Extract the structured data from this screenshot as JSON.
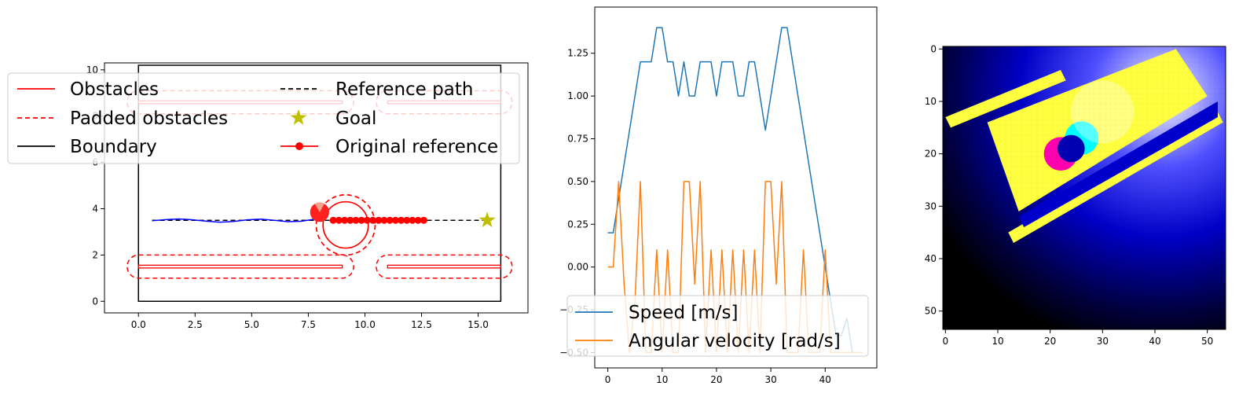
{
  "chart_data": [
    {
      "type": "line",
      "panel": "map",
      "xlim": [
        -1.5,
        17.2
      ],
      "ylim": [
        -0.5,
        10.3
      ],
      "xticks": [
        0.0,
        2.5,
        5.0,
        7.5,
        10.0,
        12.5,
        15.0
      ],
      "xtick_labels": [
        "0.0",
        "2.5",
        "5.0",
        "7.5",
        "10.0",
        "12.5",
        "15.0"
      ],
      "yticks": [
        0,
        2,
        4,
        6,
        8,
        10
      ],
      "ytick_labels": [
        "0",
        "2",
        "4",
        "6",
        "8",
        "10"
      ],
      "legend": {
        "placement": "upper-left",
        "entries": [
          {
            "name": "Obstacles",
            "color": "#ff0000",
            "style": "solid"
          },
          {
            "name": "Padded obstacles",
            "color": "#ff0000",
            "style": "dashed"
          },
          {
            "name": "Boundary",
            "color": "#000000",
            "style": "solid"
          },
          {
            "name": "Reference path",
            "color": "#000000",
            "style": "dashed"
          },
          {
            "name": "Goal",
            "color": "#bfbf00",
            "style": "star"
          },
          {
            "name": "Original reference",
            "color": "#ff0000",
            "style": "line-dot"
          }
        ]
      },
      "boundary": [
        [
          0,
          0
        ],
        [
          16,
          0
        ],
        [
          16,
          10.2
        ],
        [
          0,
          10.2
        ]
      ],
      "obstacles": [
        {
          "x0": 0,
          "x1": 9,
          "y": 1.5,
          "pad": 0.5
        },
        {
          "x0": 11,
          "x1": 16,
          "y": 1.5,
          "pad": 0.5
        },
        {
          "x0": 0,
          "x1": 9,
          "y": 8.6,
          "pad": 0.5
        },
        {
          "x0": 11,
          "x1": 16,
          "y": 8.6,
          "pad": 0.5
        }
      ],
      "reference_path": {
        "x": [
          0.6,
          15.4
        ],
        "y": [
          3.5,
          3.5
        ]
      },
      "goal": {
        "x": 15.4,
        "y": 3.5
      },
      "trajectory": {
        "x": [
          0.6,
          1.2,
          1.8,
          2.4,
          3.0,
          3.6,
          4.2,
          4.8,
          5.4,
          6.0,
          6.6,
          7.2,
          7.8,
          8.2
        ],
        "y": [
          3.48,
          3.53,
          3.56,
          3.52,
          3.46,
          3.42,
          3.45,
          3.52,
          3.55,
          3.5,
          3.44,
          3.46,
          3.55,
          3.6
        ]
      },
      "original_reference": {
        "x": [
          8.6,
          8.85,
          9.1,
          9.35,
          9.6,
          9.85,
          10.1,
          10.35,
          10.6,
          10.85,
          11.1,
          11.35,
          11.6,
          11.85,
          12.1,
          12.35,
          12.6
        ],
        "y": [
          3.5,
          3.5,
          3.5,
          3.5,
          3.5,
          3.5,
          3.5,
          3.5,
          3.5,
          3.5,
          3.5,
          3.5,
          3.5,
          3.5,
          3.5,
          3.5,
          3.5
        ]
      },
      "robot": {
        "x": 8.0,
        "y": 3.85,
        "radius": 0.42
      },
      "dynamic_obstacle": {
        "x": 9.15,
        "y": 3.3,
        "radius": 1.0,
        "padded_radius": 1.3
      }
    },
    {
      "type": "line",
      "panel": "velocities",
      "xlim": [
        -2.4,
        49.5
      ],
      "ylim": [
        -0.59,
        1.52
      ],
      "xticks": [
        0,
        10,
        20,
        30,
        40
      ],
      "xtick_labels": [
        "0",
        "10",
        "20",
        "30",
        "40"
      ],
      "yticks": [
        -0.5,
        -0.25,
        0.0,
        0.25,
        0.5,
        0.75,
        1.0,
        1.25
      ],
      "ytick_labels": [
        "−0.50",
        "−0.25",
        "0.00",
        "0.25",
        "0.50",
        "0.75",
        "1.00",
        "1.25"
      ],
      "legend": {
        "placement": "lower-left"
      },
      "series": [
        {
          "name": "Speed [m/s]",
          "color": "#1f77b4",
          "x": [
            0,
            1,
            2,
            3,
            4,
            5,
            6,
            7,
            8,
            9,
            10,
            11,
            12,
            13,
            14,
            15,
            16,
            17,
            18,
            19,
            20,
            21,
            22,
            23,
            24,
            25,
            26,
            27,
            28,
            29,
            30,
            31,
            32,
            33,
            34,
            35,
            36,
            37,
            38,
            39,
            40,
            41,
            42,
            43,
            44,
            45
          ],
          "values": [
            0.2,
            0.2,
            0.4,
            0.6,
            0.8,
            1.0,
            1.2,
            1.2,
            1.2,
            1.4,
            1.4,
            1.2,
            1.2,
            1.0,
            1.2,
            1.0,
            1.0,
            1.2,
            1.2,
            1.2,
            1.0,
            1.2,
            1.2,
            1.2,
            1.0,
            1.0,
            1.2,
            1.2,
            1.0,
            0.8,
            1.0,
            1.2,
            1.4,
            1.4,
            1.2,
            1.0,
            0.8,
            0.6,
            0.4,
            0.2,
            0.0,
            -0.2,
            -0.4,
            -0.4,
            -0.3,
            -0.5
          ]
        },
        {
          "name": "Angular velocity [rad/s]",
          "color": "#ff7f0e",
          "x": [
            0,
            1,
            2,
            3,
            4,
            5,
            6,
            7,
            8,
            9,
            10,
            11,
            12,
            13,
            14,
            15,
            16,
            17,
            18,
            19,
            20,
            21,
            22,
            23,
            24,
            25,
            26,
            27,
            28,
            29,
            30,
            31,
            32,
            33,
            34,
            35,
            36,
            37,
            38,
            39,
            40,
            41,
            42,
            43,
            44,
            45,
            46,
            47
          ],
          "values": [
            0.0,
            0.0,
            0.5,
            -0.1,
            -0.5,
            -0.2,
            0.5,
            -0.5,
            -0.5,
            0.1,
            -0.5,
            0.1,
            -0.5,
            -0.5,
            0.5,
            0.5,
            -0.1,
            0.5,
            -0.5,
            0.1,
            -0.5,
            0.1,
            -0.5,
            0.1,
            -0.5,
            0.1,
            -0.5,
            0.1,
            -0.5,
            0.5,
            0.5,
            -0.1,
            0.5,
            -0.5,
            -0.5,
            -0.5,
            0.1,
            -0.5,
            -0.5,
            -0.5,
            0.1,
            -0.5,
            -0.5,
            -0.5,
            -0.5,
            -0.5,
            -0.5,
            -0.5
          ]
        }
      ]
    },
    {
      "type": "heatmap",
      "panel": "image",
      "xlim": [
        -0.5,
        53.5
      ],
      "ylim": [
        53.5,
        -0.5
      ],
      "xticks": [
        0,
        10,
        20,
        30,
        40,
        50
      ],
      "xtick_labels": [
        "0",
        "10",
        "20",
        "30",
        "40",
        "50"
      ],
      "yticks": [
        0,
        10,
        20,
        30,
        40,
        50
      ],
      "ytick_labels": [
        "0",
        "10",
        "20",
        "30",
        "40",
        "50"
      ],
      "background_colors": [
        "#ffffff",
        "#0000e0",
        "#000000"
      ],
      "regions": [
        {
          "name": "yellow",
          "color": "#ffff40",
          "polygon": [
            [
              8,
              14
            ],
            [
              44,
              0
            ],
            [
              50,
              9
            ],
            [
              14,
              31
            ]
          ]
        },
        {
          "name": "stripe-upper",
          "color": "#ffff40",
          "polygon": [
            [
              0,
              13
            ],
            [
              22,
              4
            ],
            [
              23,
              6
            ],
            [
              1,
              15
            ]
          ]
        },
        {
          "name": "stripe-lower",
          "color": "#ffff40",
          "polygon": [
            [
              12,
              35
            ],
            [
              52,
              12
            ],
            [
              53,
              14
            ],
            [
              13,
              37
            ]
          ]
        },
        {
          "name": "blue-band",
          "color": "#0000cc",
          "polygon": [
            [
              14,
              32
            ],
            [
              52,
              10
            ],
            [
              52,
              13
            ],
            [
              15,
              34
            ]
          ]
        },
        {
          "name": "magenta",
          "color": "#ff00b0",
          "circle": [
            22,
            20,
            3.2
          ]
        },
        {
          "name": "cyan",
          "color": "#00ffff",
          "circle": [
            26,
            17,
            3.2
          ]
        },
        {
          "name": "dark-blue",
          "color": "#0000b0",
          "circle": [
            24,
            19,
            2.6
          ]
        }
      ]
    }
  ]
}
